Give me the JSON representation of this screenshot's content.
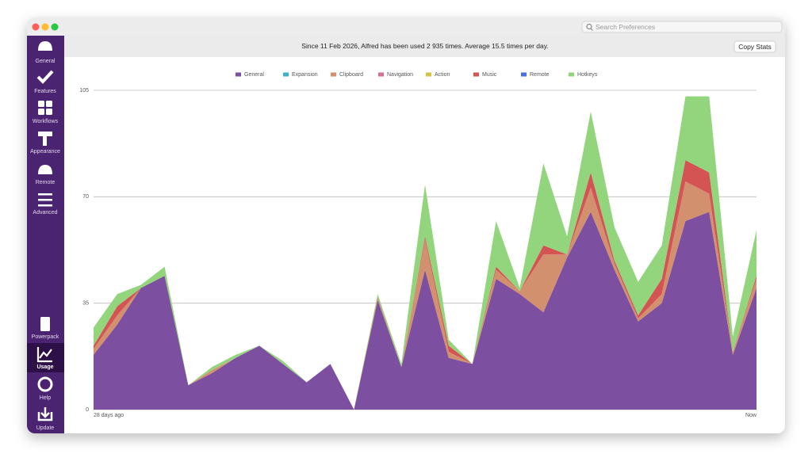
{
  "search": {
    "placeholder": "Search Preferences"
  },
  "sidebar": {
    "items": [
      "General",
      "Features",
      "Workflows",
      "Appearance",
      "Remote",
      "Advanced",
      "Powerpack",
      "Usage",
      "Help",
      "Update"
    ],
    "selected": 7
  },
  "header": {
    "stats": "Since 11 Feb 2026, Alfred has been used 2 935 times. Average 15.5 times per day.",
    "button": "Copy Stats"
  },
  "chart_data": {
    "type": "stacked_area",
    "categories": [
      "28 days ago",
      null,
      null,
      null,
      null,
      null,
      null,
      null,
      null,
      null,
      null,
      null,
      null,
      null,
      null,
      null,
      null,
      null,
      null,
      null,
      null,
      null,
      null,
      null,
      null,
      null,
      null,
      null,
      "Now"
    ],
    "series": [
      {
        "name": "General",
        "color": "#7c4fa0",
        "values": [
          18,
          28,
          40,
          44,
          8,
          12,
          17,
          21,
          15,
          9,
          15,
          0,
          36,
          14,
          46,
          17,
          15,
          43,
          38,
          32,
          50,
          65,
          46,
          29,
          35,
          62,
          65,
          18,
          40
        ]
      },
      {
        "name": "Expansion",
        "color": "#3fb0c9",
        "values": [
          0,
          0,
          0,
          0,
          0,
          0,
          0,
          0,
          0,
          0,
          0,
          0,
          0,
          0,
          0,
          0,
          0,
          0,
          0,
          0,
          0,
          0,
          0,
          0,
          0,
          0,
          0,
          0,
          0
        ]
      },
      {
        "name": "Clipboard",
        "color": "#d2906f",
        "values": [
          2,
          3,
          0,
          0,
          0,
          1,
          0,
          0,
          0,
          0,
          0,
          0,
          1,
          0,
          10,
          2,
          0,
          3,
          1,
          19,
          1,
          8,
          2,
          1,
          3,
          13,
          6,
          1,
          3
        ]
      },
      {
        "name": "Navigation",
        "color": "#d66f8f",
        "values": [
          0,
          0,
          0,
          0,
          0,
          0,
          0,
          0,
          0,
          0,
          0,
          0,
          0,
          0,
          0,
          0,
          0,
          0,
          0,
          0,
          0,
          0,
          0,
          0,
          0,
          0,
          0,
          0,
          0
        ]
      },
      {
        "name": "Action",
        "color": "#d6c244",
        "values": [
          0,
          0,
          0,
          0,
          0,
          0,
          0,
          0,
          0,
          0,
          0,
          0,
          0,
          0,
          0,
          0,
          0,
          0,
          0,
          0,
          0,
          0,
          0,
          0,
          0,
          0,
          0,
          0,
          0
        ]
      },
      {
        "name": "Music",
        "color": "#d45454",
        "values": [
          1,
          3,
          0,
          0,
          0,
          0,
          0,
          0,
          0,
          0,
          0,
          0,
          0,
          0,
          1,
          2,
          0,
          1,
          0,
          3,
          0,
          5,
          1,
          1,
          5,
          7,
          7,
          0,
          1
        ]
      },
      {
        "name": "Remote",
        "color": "#4a6fe0",
        "values": [
          0,
          0,
          0,
          0,
          0,
          0,
          0,
          0,
          0,
          0,
          0,
          0,
          0,
          0,
          0,
          0,
          0,
          0,
          0,
          0,
          0,
          0,
          0,
          0,
          0,
          0,
          0,
          0,
          0
        ]
      },
      {
        "name": "Hotkeys",
        "color": "#93d57c",
        "values": [
          6,
          4,
          1,
          3,
          0,
          1,
          1,
          0,
          1,
          0,
          0,
          0,
          1,
          1,
          17,
          2,
          0,
          15,
          1,
          27,
          6,
          20,
          11,
          11,
          11,
          21,
          25,
          5,
          15
        ]
      }
    ],
    "ylim": [
      0,
      105
    ],
    "yticks": [
      0,
      35,
      70,
      105
    ],
    "grid": true,
    "legend": "top"
  }
}
